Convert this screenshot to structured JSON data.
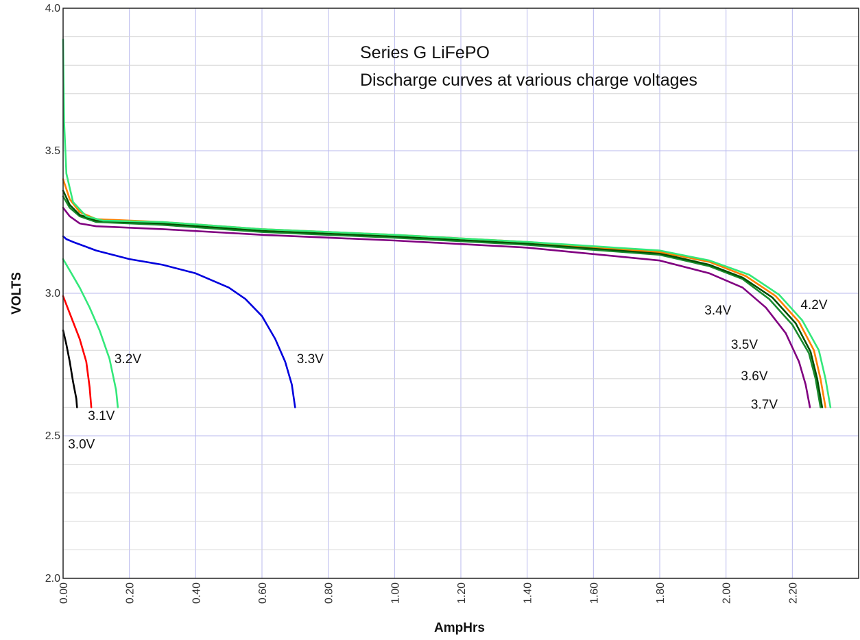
{
  "chart_data": {
    "type": "line",
    "title_lines": [
      "Series G LiFePO",
      "Discharge curves at various charge voltages"
    ],
    "xlabel": "AmpHrs",
    "ylabel": "VOLTS",
    "xlim": [
      0,
      2.4
    ],
    "ylim": [
      2.0,
      4.0
    ],
    "x_ticks": [
      "0.00",
      "0.20",
      "0.40",
      "0.60",
      "0.80",
      "1.00",
      "1.20",
      "1.40",
      "1.60",
      "1.80",
      "2.00",
      "2.20"
    ],
    "y_ticks": [
      "2.0",
      "2.5",
      "3.0",
      "3.5",
      "4.0"
    ],
    "grid": true,
    "series": [
      {
        "name": "3.0V",
        "color": "#000000",
        "points": [
          [
            0,
            2.87
          ],
          [
            0.01,
            2.82
          ],
          [
            0.02,
            2.76
          ],
          [
            0.03,
            2.69
          ],
          [
            0.04,
            2.63
          ],
          [
            0.042,
            2.6
          ]
        ]
      },
      {
        "name": "3.1V",
        "color": "#ff0000",
        "points": [
          [
            0,
            2.99
          ],
          [
            0.01,
            2.96
          ],
          [
            0.03,
            2.9
          ],
          [
            0.05,
            2.84
          ],
          [
            0.07,
            2.76
          ],
          [
            0.08,
            2.67
          ],
          [
            0.085,
            2.6
          ]
        ]
      },
      {
        "name": "3.2V",
        "color": "#33e87a",
        "points": [
          [
            0,
            3.12
          ],
          [
            0.02,
            3.08
          ],
          [
            0.05,
            3.02
          ],
          [
            0.08,
            2.95
          ],
          [
            0.11,
            2.87
          ],
          [
            0.14,
            2.77
          ],
          [
            0.16,
            2.66
          ],
          [
            0.165,
            2.6
          ]
        ]
      },
      {
        "name": "3.3V",
        "color": "#0000dd",
        "points": [
          [
            0,
            3.2
          ],
          [
            0.01,
            3.19
          ],
          [
            0.03,
            3.18
          ],
          [
            0.1,
            3.15
          ],
          [
            0.2,
            3.12
          ],
          [
            0.3,
            3.1
          ],
          [
            0.4,
            3.07
          ],
          [
            0.5,
            3.02
          ],
          [
            0.55,
            2.98
          ],
          [
            0.6,
            2.92
          ],
          [
            0.64,
            2.84
          ],
          [
            0.67,
            2.76
          ],
          [
            0.69,
            2.68
          ],
          [
            0.7,
            2.6
          ]
        ]
      },
      {
        "name": "3.4V",
        "color": "#800080",
        "points": [
          [
            0,
            3.3
          ],
          [
            0.02,
            3.27
          ],
          [
            0.05,
            3.245
          ],
          [
            0.1,
            3.235
          ],
          [
            0.3,
            3.225
          ],
          [
            0.6,
            3.205
          ],
          [
            1.0,
            3.185
          ],
          [
            1.4,
            3.16
          ],
          [
            1.8,
            3.115
          ],
          [
            1.95,
            3.07
          ],
          [
            2.05,
            3.02
          ],
          [
            2.12,
            2.95
          ],
          [
            2.18,
            2.86
          ],
          [
            2.22,
            2.76
          ],
          [
            2.24,
            2.68
          ],
          [
            2.253,
            2.6
          ]
        ]
      },
      {
        "name": "3.5V",
        "color": "#1a8a2e",
        "points": [
          [
            0,
            3.34
          ],
          [
            0.02,
            3.3
          ],
          [
            0.05,
            3.27
          ],
          [
            0.1,
            3.25
          ],
          [
            0.3,
            3.24
          ],
          [
            0.6,
            3.215
          ],
          [
            1.0,
            3.195
          ],
          [
            1.4,
            3.17
          ],
          [
            1.8,
            3.135
          ],
          [
            1.95,
            3.095
          ],
          [
            2.05,
            3.05
          ],
          [
            2.13,
            2.98
          ],
          [
            2.2,
            2.89
          ],
          [
            2.25,
            2.79
          ],
          [
            2.27,
            2.7
          ],
          [
            2.285,
            2.6
          ]
        ]
      },
      {
        "name": "3.6V",
        "color": "#005000",
        "points": [
          [
            0,
            3.36
          ],
          [
            0.02,
            3.31
          ],
          [
            0.05,
            3.275
          ],
          [
            0.1,
            3.255
          ],
          [
            0.3,
            3.245
          ],
          [
            0.6,
            3.22
          ],
          [
            1.0,
            3.2
          ],
          [
            1.4,
            3.175
          ],
          [
            1.8,
            3.14
          ],
          [
            1.95,
            3.1
          ],
          [
            2.05,
            3.055
          ],
          [
            2.14,
            2.985
          ],
          [
            2.21,
            2.895
          ],
          [
            2.255,
            2.795
          ],
          [
            2.275,
            2.7
          ],
          [
            2.29,
            2.6
          ]
        ]
      },
      {
        "name": "3.7V",
        "color": "#ff8000",
        "points": [
          [
            0,
            3.4
          ],
          [
            0.02,
            3.33
          ],
          [
            0.05,
            3.285
          ],
          [
            0.1,
            3.26
          ],
          [
            0.3,
            3.25
          ],
          [
            0.6,
            3.225
          ],
          [
            1.0,
            3.205
          ],
          [
            1.4,
            3.18
          ],
          [
            1.8,
            3.145
          ],
          [
            1.95,
            3.11
          ],
          [
            2.06,
            3.06
          ],
          [
            2.15,
            2.99
          ],
          [
            2.22,
            2.9
          ],
          [
            2.265,
            2.8
          ],
          [
            2.285,
            2.7
          ],
          [
            2.3,
            2.6
          ]
        ]
      },
      {
        "name": "4.2V",
        "color": "#33e87a",
        "points": [
          [
            0,
            3.89
          ],
          [
            0.003,
            3.6
          ],
          [
            0.01,
            3.42
          ],
          [
            0.03,
            3.32
          ],
          [
            0.07,
            3.27
          ],
          [
            0.12,
            3.255
          ],
          [
            0.3,
            3.25
          ],
          [
            0.6,
            3.225
          ],
          [
            1.0,
            3.205
          ],
          [
            1.4,
            3.18
          ],
          [
            1.8,
            3.15
          ],
          [
            1.95,
            3.115
          ],
          [
            2.07,
            3.065
          ],
          [
            2.16,
            2.995
          ],
          [
            2.23,
            2.905
          ],
          [
            2.28,
            2.8
          ],
          [
            2.3,
            2.7
          ],
          [
            2.315,
            2.6
          ]
        ]
      }
    ],
    "curve_labels": [
      {
        "text": "3.0V",
        "x": 0.015,
        "y": 2.455
      },
      {
        "text": "3.1V",
        "x": 0.075,
        "y": 2.555
      },
      {
        "text": "3.2V",
        "x": 0.155,
        "y": 2.755
      },
      {
        "text": "3.3V",
        "x": 0.705,
        "y": 2.755
      },
      {
        "text": "3.4V",
        "x": 1.935,
        "y": 2.925
      },
      {
        "text": "3.5V",
        "x": 2.015,
        "y": 2.805
      },
      {
        "text": "3.6V",
        "x": 2.045,
        "y": 2.695
      },
      {
        "text": "3.7V",
        "x": 2.075,
        "y": 2.595
      },
      {
        "text": "4.2V",
        "x": 2.225,
        "y": 2.945
      }
    ]
  }
}
